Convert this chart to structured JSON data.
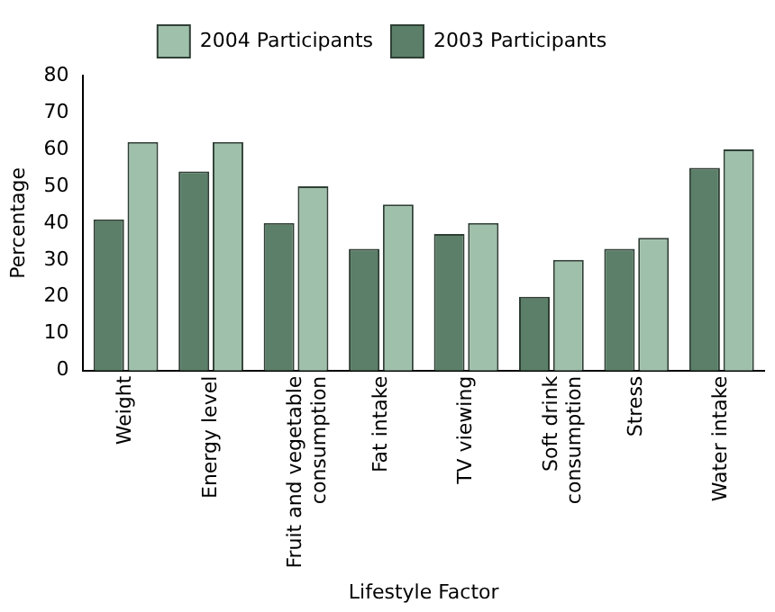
{
  "chart_data": {
    "type": "bar",
    "xlabel": "Lifestyle Factor",
    "ylabel": "Percentage",
    "categories": [
      "Weight",
      "Energy level",
      "Fruit and vegetable consumption",
      "Fat intake",
      "TV viewing",
      "Soft drink consumption",
      "Stress",
      "Water intake"
    ],
    "series": [
      {
        "name": "2003 Participants",
        "color": "#5b7f68",
        "values": [
          41,
          54,
          40,
          33,
          37,
          20,
          33,
          55
        ]
      },
      {
        "name": "2004 Participants",
        "color": "#9fc0ab",
        "values": [
          62,
          62,
          50,
          45,
          40,
          30,
          36,
          60
        ]
      }
    ],
    "ylim": [
      0,
      80
    ],
    "yticks": [
      0,
      10,
      20,
      30,
      40,
      50,
      60,
      70,
      80
    ],
    "grid": false,
    "legend": "top"
  }
}
